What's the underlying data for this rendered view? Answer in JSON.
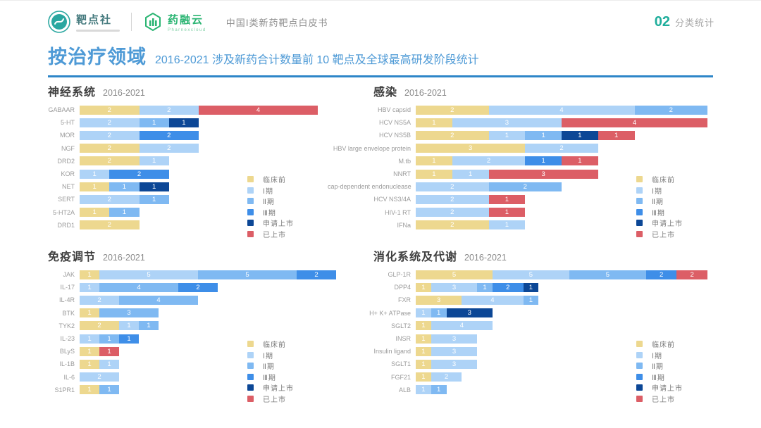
{
  "header": {
    "brand1": "靶点社",
    "brand2": "药融云",
    "brand2_tagline": "Pharnexcloud",
    "doc_title": "中国Ⅰ类新药靶点白皮书",
    "section_number": "02",
    "section_label": "分类统计"
  },
  "title": {
    "main": "按治疗领域",
    "subtitle": "2016-2021 涉及新药合计数量前 10 靶点及全球最高研发阶段统计"
  },
  "legend": {
    "items": [
      {
        "label": "临床前",
        "color": "#EDD88F"
      },
      {
        "label": "Ⅰ期",
        "color": "#AED3F7"
      },
      {
        "label": "Ⅱ期",
        "color": "#7FB9F2"
      },
      {
        "label": "Ⅲ期",
        "color": "#3E8EE8"
      },
      {
        "label": "申请上市",
        "color": "#0C4796"
      },
      {
        "label": "已上市",
        "color": "#DC5E66"
      }
    ]
  },
  "chart_data": [
    {
      "type": "bar",
      "orientation": "horizontal",
      "title": "神经系统",
      "subtitle": "2016-2021",
      "unit": "新药数量",
      "max_total": 8,
      "rows": [
        {
          "target": "GABAAR",
          "segments": [
            {
              "phase": "临床前",
              "value": 2
            },
            {
              "phase": "Ⅰ期",
              "value": 2
            },
            {
              "phase": "已上市",
              "value": 4
            }
          ]
        },
        {
          "target": "5-HT",
          "segments": [
            {
              "phase": "Ⅰ期",
              "value": 2
            },
            {
              "phase": "Ⅱ期",
              "value": 1
            },
            {
              "phase": "申请上市",
              "value": 1
            }
          ]
        },
        {
          "target": "MOR",
          "segments": [
            {
              "phase": "Ⅰ期",
              "value": 2
            },
            {
              "phase": "Ⅲ期",
              "value": 2
            }
          ]
        },
        {
          "target": "NGF",
          "segments": [
            {
              "phase": "临床前",
              "value": 2
            },
            {
              "phase": "Ⅰ期",
              "value": 2
            }
          ]
        },
        {
          "target": "DRD2",
          "segments": [
            {
              "phase": "临床前",
              "value": 2
            },
            {
              "phase": "Ⅰ期",
              "value": 1
            }
          ]
        },
        {
          "target": "KOR",
          "segments": [
            {
              "phase": "Ⅰ期",
              "value": 1
            },
            {
              "phase": "Ⅲ期",
              "value": 2
            }
          ]
        },
        {
          "target": "NET",
          "segments": [
            {
              "phase": "临床前",
              "value": 1
            },
            {
              "phase": "Ⅱ期",
              "value": 1
            },
            {
              "phase": "申请上市",
              "value": 1
            }
          ]
        },
        {
          "target": "SERT",
          "segments": [
            {
              "phase": "Ⅰ期",
              "value": 2
            },
            {
              "phase": "Ⅱ期",
              "value": 1
            }
          ]
        },
        {
          "target": "5-HT2A",
          "segments": [
            {
              "phase": "临床前",
              "value": 1
            },
            {
              "phase": "Ⅱ期",
              "value": 1
            }
          ]
        },
        {
          "target": "DRD1",
          "segments": [
            {
              "phase": "临床前",
              "value": 2
            }
          ]
        }
      ]
    },
    {
      "type": "bar",
      "orientation": "horizontal",
      "title": "感染",
      "subtitle": "2016-2021",
      "unit": "新药数量",
      "max_total": 8,
      "rows": [
        {
          "target": "HBV capsid",
          "segments": [
            {
              "phase": "临床前",
              "value": 2
            },
            {
              "phase": "Ⅰ期",
              "value": 4
            },
            {
              "phase": "Ⅱ期",
              "value": 2
            }
          ]
        },
        {
          "target": "HCV NS5A",
          "segments": [
            {
              "phase": "临床前",
              "value": 1
            },
            {
              "phase": "Ⅰ期",
              "value": 3
            },
            {
              "phase": "已上市",
              "value": 4
            }
          ]
        },
        {
          "target": "HCV NS5B",
          "segments": [
            {
              "phase": "临床前",
              "value": 2
            },
            {
              "phase": "Ⅰ期",
              "value": 1
            },
            {
              "phase": "Ⅱ期",
              "value": 1
            },
            {
              "phase": "申请上市",
              "value": 1
            },
            {
              "phase": "已上市",
              "value": 1
            }
          ]
        },
        {
          "target": "HBV large envelope protein",
          "segments": [
            {
              "phase": "临床前",
              "value": 3
            },
            {
              "phase": "Ⅰ期",
              "value": 2
            }
          ]
        },
        {
          "target": "M.tb",
          "segments": [
            {
              "phase": "临床前",
              "value": 1
            },
            {
              "phase": "Ⅰ期",
              "value": 2
            },
            {
              "phase": "Ⅲ期",
              "value": 1
            },
            {
              "phase": "已上市",
              "value": 1
            }
          ]
        },
        {
          "target": "NNRT",
          "segments": [
            {
              "phase": "临床前",
              "value": 1
            },
            {
              "phase": "Ⅰ期",
              "value": 1
            },
            {
              "phase": "已上市",
              "value": 3
            }
          ]
        },
        {
          "target": "cap-dependent endonuclease",
          "segments": [
            {
              "phase": "Ⅰ期",
              "value": 2
            },
            {
              "phase": "Ⅱ期",
              "value": 2
            }
          ]
        },
        {
          "target": "HCV NS3/4A",
          "segments": [
            {
              "phase": "Ⅰ期",
              "value": 2
            },
            {
              "phase": "已上市",
              "value": 1
            }
          ]
        },
        {
          "target": "HIV-1 RT",
          "segments": [
            {
              "phase": "Ⅰ期",
              "value": 2
            },
            {
              "phase": "已上市",
              "value": 1
            }
          ]
        },
        {
          "target": "IFNa",
          "segments": [
            {
              "phase": "临床前",
              "value": 2
            },
            {
              "phase": "Ⅰ期",
              "value": 1
            }
          ]
        }
      ]
    },
    {
      "type": "bar",
      "orientation": "horizontal",
      "title": "免疫调节",
      "subtitle": "2016-2021",
      "unit": "新药数量",
      "max_total": 13,
      "rows": [
        {
          "target": "JAK",
          "segments": [
            {
              "phase": "临床前",
              "value": 1
            },
            {
              "phase": "Ⅰ期",
              "value": 5
            },
            {
              "phase": "Ⅱ期",
              "value": 5
            },
            {
              "phase": "Ⅲ期",
              "value": 2
            }
          ]
        },
        {
          "target": "IL-17",
          "segments": [
            {
              "phase": "Ⅰ期",
              "value": 1
            },
            {
              "phase": "Ⅱ期",
              "value": 4
            },
            {
              "phase": "Ⅲ期",
              "value": 2
            }
          ]
        },
        {
          "target": "IL-4R",
          "segments": [
            {
              "phase": "Ⅰ期",
              "value": 2
            },
            {
              "phase": "Ⅱ期",
              "value": 4
            }
          ]
        },
        {
          "target": "BTK",
          "segments": [
            {
              "phase": "临床前",
              "value": 1
            },
            {
              "phase": "Ⅱ期",
              "value": 3
            }
          ]
        },
        {
          "target": "TYK2",
          "segments": [
            {
              "phase": "临床前",
              "value": 2
            },
            {
              "phase": "Ⅰ期",
              "value": 1
            },
            {
              "phase": "Ⅱ期",
              "value": 1
            }
          ]
        },
        {
          "target": "IL-23",
          "segments": [
            {
              "phase": "Ⅰ期",
              "value": 1
            },
            {
              "phase": "Ⅱ期",
              "value": 1
            },
            {
              "phase": "Ⅲ期",
              "value": 1
            }
          ]
        },
        {
          "target": "BLyS",
          "segments": [
            {
              "phase": "临床前",
              "value": 1
            },
            {
              "phase": "已上市",
              "value": 1
            }
          ]
        },
        {
          "target": "IL-1B",
          "segments": [
            {
              "phase": "临床前",
              "value": 1
            },
            {
              "phase": "Ⅰ期",
              "value": 1
            }
          ]
        },
        {
          "target": "IL-6",
          "segments": [
            {
              "phase": "Ⅰ期",
              "value": 2
            }
          ]
        },
        {
          "target": "S1PR1",
          "segments": [
            {
              "phase": "临床前",
              "value": 1
            },
            {
              "phase": "Ⅱ期",
              "value": 1
            }
          ]
        }
      ]
    },
    {
      "type": "bar",
      "orientation": "horizontal",
      "title": "消化系统及代谢",
      "subtitle": "2016-2021",
      "unit": "新药数量",
      "max_total": 19,
      "rows": [
        {
          "target": "GLP-1R",
          "segments": [
            {
              "phase": "临床前",
              "value": 5
            },
            {
              "phase": "Ⅰ期",
              "value": 5
            },
            {
              "phase": "Ⅱ期",
              "value": 5
            },
            {
              "phase": "Ⅲ期",
              "value": 2
            },
            {
              "phase": "已上市",
              "value": 2
            }
          ]
        },
        {
          "target": "DPP4",
          "segments": [
            {
              "phase": "临床前",
              "value": 1
            },
            {
              "phase": "Ⅰ期",
              "value": 3
            },
            {
              "phase": "Ⅱ期",
              "value": 1
            },
            {
              "phase": "Ⅲ期",
              "value": 2
            },
            {
              "phase": "申请上市",
              "value": 1
            }
          ]
        },
        {
          "target": "FXR",
          "segments": [
            {
              "phase": "临床前",
              "value": 3
            },
            {
              "phase": "Ⅰ期",
              "value": 4
            },
            {
              "phase": "Ⅱ期",
              "value": 1
            }
          ]
        },
        {
          "target": "H+ K+ ATPase",
          "segments": [
            {
              "phase": "Ⅰ期",
              "value": 1
            },
            {
              "phase": "Ⅱ期",
              "value": 1
            },
            {
              "phase": "申请上市",
              "value": 3
            }
          ]
        },
        {
          "target": "SGLT2",
          "segments": [
            {
              "phase": "临床前",
              "value": 1
            },
            {
              "phase": "Ⅰ期",
              "value": 4
            }
          ]
        },
        {
          "target": "INSR",
          "segments": [
            {
              "phase": "临床前",
              "value": 1
            },
            {
              "phase": "Ⅰ期",
              "value": 3
            }
          ]
        },
        {
          "target": "Insulin ligand",
          "segments": [
            {
              "phase": "临床前",
              "value": 1
            },
            {
              "phase": "Ⅰ期",
              "value": 3
            }
          ]
        },
        {
          "target": "SGLT1",
          "segments": [
            {
              "phase": "临床前",
              "value": 1
            },
            {
              "phase": "Ⅰ期",
              "value": 3
            }
          ]
        },
        {
          "target": "FGF21",
          "segments": [
            {
              "phase": "临床前",
              "value": 1
            },
            {
              "phase": "Ⅰ期",
              "value": 2
            }
          ]
        },
        {
          "target": "ALB",
          "segments": [
            {
              "phase": "Ⅰ期",
              "value": 1
            },
            {
              "phase": "Ⅱ期",
              "value": 1
            }
          ]
        }
      ]
    }
  ]
}
